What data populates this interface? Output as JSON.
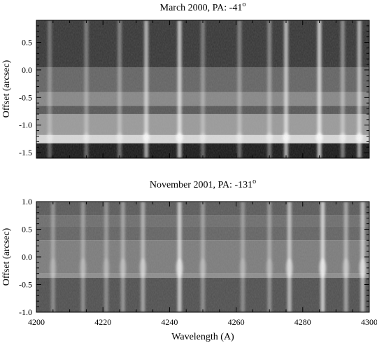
{
  "chart_data": [
    {
      "type": "heatmap",
      "title_text": "March 2000, PA: -41",
      "title_sup": "o",
      "xlabel": "",
      "ylabel": "Offset (arcsec)",
      "xlim": [
        4200,
        4300
      ],
      "ylim": [
        -1.6,
        0.9
      ],
      "yticks": [
        "0.5",
        "0.0",
        "-0.5",
        "-1.0",
        "-1.5"
      ],
      "ytick_values": [
        0.5,
        0.0,
        -0.5,
        -1.0,
        -1.5
      ],
      "bands": [
        {
          "y0": 0.9,
          "y1": 0.05,
          "intensity": 0.2
        },
        {
          "y0": 0.05,
          "y1": -0.4,
          "intensity": 0.38
        },
        {
          "y0": -0.4,
          "y1": -0.65,
          "intensity": 0.52
        },
        {
          "y0": -0.65,
          "y1": -0.8,
          "intensity": 0.33
        },
        {
          "y0": -0.8,
          "y1": -1.18,
          "intensity": 0.6
        },
        {
          "y0": -1.18,
          "y1": -1.33,
          "intensity": 0.85
        },
        {
          "y0": -1.33,
          "y1": -1.6,
          "intensity": 0.08
        }
      ],
      "lines": [
        {
          "x": 4204,
          "strength": 0.25
        },
        {
          "x": 4215,
          "strength": 0.3
        },
        {
          "x": 4225,
          "strength": 0.35
        },
        {
          "x": 4233,
          "strength": 0.8
        },
        {
          "x": 4243,
          "strength": 0.95
        },
        {
          "x": 4250,
          "strength": 0.3
        },
        {
          "x": 4261,
          "strength": 0.35
        },
        {
          "x": 4270,
          "strength": 0.4
        },
        {
          "x": 4275,
          "strength": 0.85
        },
        {
          "x": 4285,
          "strength": 1.0
        },
        {
          "x": 4292,
          "strength": 0.45
        },
        {
          "x": 4297,
          "strength": 0.8
        }
      ]
    },
    {
      "type": "heatmap",
      "title_text": "November 2001, PA: -131",
      "title_sup": "o",
      "xlabel": "Wavelength (A)",
      "ylabel": "Offset (arcsec)",
      "xlim": [
        4200,
        4300
      ],
      "ylim": [
        -1.0,
        1.0
      ],
      "xticks": [
        "4200",
        "4220",
        "4240",
        "4260",
        "4280",
        "4300"
      ],
      "xtick_values": [
        4200,
        4220,
        4240,
        4260,
        4280,
        4300
      ],
      "yticks": [
        "1.0",
        "0.5",
        "0.0",
        "-0.5",
        "-1.0"
      ],
      "ytick_values": [
        1.0,
        0.5,
        0.0,
        -0.5,
        -1.0
      ],
      "bands": [
        {
          "y0": 1.0,
          "y1": 0.75,
          "intensity": 0.34
        },
        {
          "y0": 0.75,
          "y1": 0.55,
          "intensity": 0.42
        },
        {
          "y0": 0.55,
          "y1": 0.3,
          "intensity": 0.38
        },
        {
          "y0": 0.3,
          "y1": -0.3,
          "intensity": 0.48
        },
        {
          "y0": -0.3,
          "y1": -0.38,
          "intensity": 0.55
        },
        {
          "y0": -0.38,
          "y1": -1.0,
          "intensity": 0.3
        }
      ],
      "lines": [
        {
          "x": 4205,
          "strength": 0.3
        },
        {
          "x": 4214,
          "strength": 0.35
        },
        {
          "x": 4221,
          "strength": 0.3
        },
        {
          "x": 4226,
          "strength": 0.4
        },
        {
          "x": 4232,
          "strength": 0.55
        },
        {
          "x": 4243,
          "strength": 0.9
        },
        {
          "x": 4250,
          "strength": 0.35
        },
        {
          "x": 4262,
          "strength": 0.3
        },
        {
          "x": 4270,
          "strength": 0.35
        },
        {
          "x": 4276,
          "strength": 0.75
        },
        {
          "x": 4286,
          "strength": 0.95
        },
        {
          "x": 4293,
          "strength": 0.5
        },
        {
          "x": 4298,
          "strength": 0.8
        }
      ]
    }
  ]
}
